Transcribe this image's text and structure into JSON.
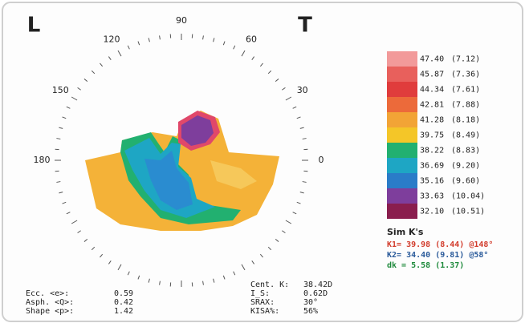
{
  "corner_labels": [
    "L",
    "T"
  ],
  "angle_labels": [
    90,
    120,
    60,
    150,
    30,
    180,
    0
  ],
  "scale": [
    {
      "value": "47.40",
      "radius": "(7.12)",
      "color": "#f29a9a"
    },
    {
      "value": "45.87",
      "radius": "(7.36)",
      "color": "#e8605c"
    },
    {
      "value": "44.34",
      "radius": "(7.61)",
      "color": "#e03c3c"
    },
    {
      "value": "42.81",
      "radius": "(7.88)",
      "color": "#ec6a3a"
    },
    {
      "value": "41.28",
      "radius": "(8.18)",
      "color": "#f2a436"
    },
    {
      "value": "39.75",
      "radius": "(8.49)",
      "color": "#f4c628"
    },
    {
      "value": "38.22",
      "radius": "(8.83)",
      "color": "#22b070"
    },
    {
      "value": "36.69",
      "radius": "(9.20)",
      "color": "#1ea6c4"
    },
    {
      "value": "35.16",
      "radius": "(9.60)",
      "color": "#2a7cc8"
    },
    {
      "value": "33.63",
      "radius": "(10.04)",
      "color": "#7e3e9c"
    },
    {
      "value": "32.10",
      "radius": "(10.51)",
      "color": "#8a1e4e"
    }
  ],
  "sim_k": {
    "title": "Sim K's",
    "lines": [
      {
        "text": "K1= 39.98 (8.44) @148°",
        "color": "#d23c2c"
      },
      {
        "text": "K2= 34.40 (9.81) @58°",
        "color": "#2a5a9a"
      },
      {
        "text": "dk = 5.58 (1.37)",
        "color": "#1e8a3c"
      }
    ]
  },
  "stats_left": [
    [
      "Ecc. <e>:",
      "0.59"
    ],
    [
      "Asph. <Q>:",
      "0.42"
    ],
    [
      "Shape <p>:",
      "1.42"
    ]
  ],
  "stats_right": [
    [
      "Cent. K:",
      "38.42D"
    ],
    [
      "I_S:",
      "0.62D"
    ],
    [
      "SRAX:",
      "30°"
    ],
    [
      "KISA%:",
      "56%"
    ]
  ]
}
